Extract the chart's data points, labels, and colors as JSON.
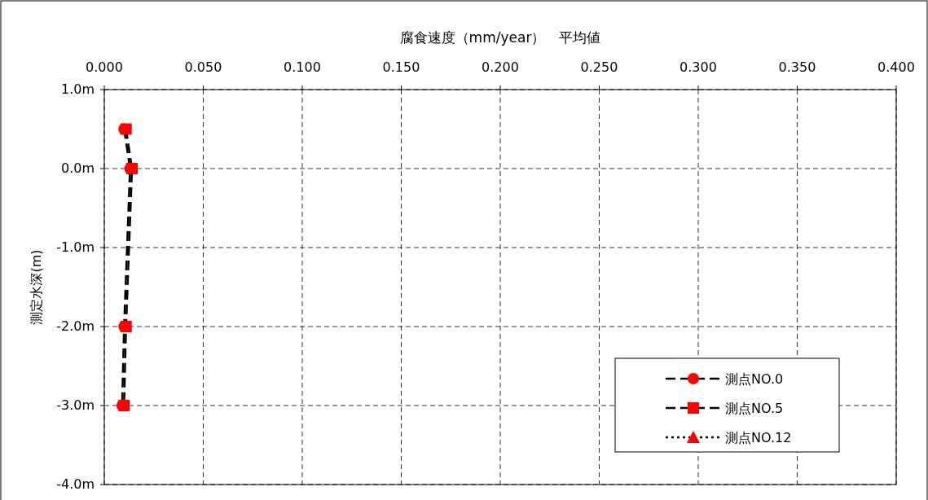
{
  "chart_data": {
    "type": "line",
    "xlabel": "腐食速度（mm/year）　平均値",
    "ylabel": "測定水深(m)",
    "xlim": [
      0,
      0.4
    ],
    "xticks": [
      {
        "value": 0,
        "label": "0.000"
      },
      {
        "value": 0.05,
        "label": "0.050"
      },
      {
        "value": 0.1,
        "label": "0.100"
      },
      {
        "value": 0.15,
        "label": "0.150"
      },
      {
        "value": 0.2,
        "label": "0.200"
      },
      {
        "value": 0.25,
        "label": "0.250"
      },
      {
        "value": 0.3,
        "label": "0.300"
      },
      {
        "value": 0.35,
        "label": "0.350"
      },
      {
        "value": 0.4,
        "label": "0.400"
      }
    ],
    "ylim": [
      -4,
      1
    ],
    "yticks": [
      {
        "value": 1,
        "label": "1.0m"
      },
      {
        "value": 0,
        "label": "0.0m"
      },
      {
        "value": -1,
        "label": "-1.0m"
      },
      {
        "value": -2,
        "label": "-2.0m"
      },
      {
        "value": -3,
        "label": "-3.0m"
      },
      {
        "value": -4,
        "label": "-4.0m"
      }
    ],
    "grid": true,
    "legend": "bottom right",
    "series": [
      {
        "name": "測点NO.0",
        "color": "#ff0000",
        "marker": "circle",
        "line_style": "dashed",
        "x": [
          0.01,
          0.013,
          0.01,
          0.009
        ],
        "values": [
          0.5,
          0,
          -2,
          -3
        ]
      },
      {
        "name": "測点NO.5",
        "color": "#ff0000",
        "marker": "square",
        "line_style": "dashed",
        "x": [
          0.011,
          0.014,
          0.011,
          0.01
        ],
        "values": [
          0.5,
          0,
          -2,
          -3
        ]
      },
      {
        "name": "測点NO.12",
        "color": "#ff0000",
        "marker": "triangle",
        "line_style": "dotted",
        "x": [
          null,
          null,
          null,
          null
        ],
        "values": [
          null,
          null,
          null,
          null
        ]
      }
    ]
  }
}
